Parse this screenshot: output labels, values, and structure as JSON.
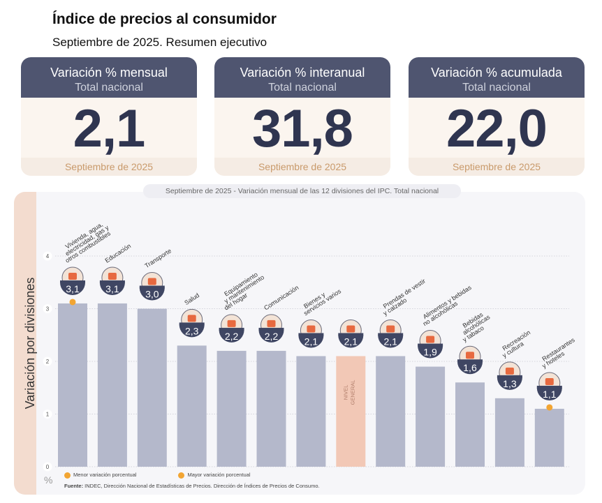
{
  "header": {
    "title": "Índice de precios al consumidor",
    "subtitle": "Septiembre de 2025. Resumen ejecutivo"
  },
  "cards": [
    {
      "title": "Variación % mensual",
      "subtitle": "Total nacional",
      "value": "2,1",
      "footer": "Septiembre de 2025"
    },
    {
      "title": "Variación % interanual",
      "subtitle": "Total nacional",
      "value": "31,8",
      "footer": "Septiembre de 2025"
    },
    {
      "title": "Variación % acumulada",
      "subtitle": "Total nacional",
      "value": "22,0",
      "footer": "Septiembre de 2025"
    }
  ],
  "panel": {
    "caption_date": "Septiembre de 2025",
    "caption_rest": " - Variación mensual de las 12 divisiones del IPC. Total nacional",
    "ylabel": "Variación por divisiones",
    "unit": "%",
    "legend_min": "Menor variación porcentual",
    "legend_max": "Mayor variación porcentual",
    "source_label": "Fuente:",
    "source_text": " INDEC, Dirección Nacional de Estadísticas de Precios. Dirección de Índices de Precios de Consumo."
  },
  "colors": {
    "bar": "#b4b8cb",
    "bar_highlight": "#f2c8b6",
    "card_header": "#4f5570",
    "badge": "#3f4663",
    "marker": "#f2a533"
  },
  "chart_data": {
    "type": "bar",
    "ylim": [
      0,
      4
    ],
    "yticks": [
      0,
      1,
      2,
      3,
      4
    ],
    "categories": [
      "Vivienda, agua, electricidad, gas y otros combustibles",
      "Educación",
      "Transporte",
      "Salud",
      "Equipamiento y mantenimiento del hogar",
      "Comunicación",
      "Bienes y servicios varios",
      "NIVEL GENERAL",
      "Prendas de vestir y calzado",
      "Alimentos y bebidas no alcohólicas",
      "Bebidas alcohólicas y tabaco",
      "Recreación y cultura",
      "Restaurantes y hoteles"
    ],
    "values": [
      3.1,
      3.1,
      3.0,
      2.3,
      2.2,
      2.2,
      2.1,
      2.1,
      2.1,
      1.9,
      1.6,
      1.3,
      1.1
    ],
    "value_labels": [
      "3,1",
      "3,1",
      "3,0",
      "2,3",
      "2,2",
      "2,2",
      "2,1",
      "2,1",
      "2,1",
      "1,9",
      "1,6",
      "1,3",
      "1,1"
    ],
    "category_lines": [
      [
        "Vivienda, agua,",
        "electricidad, gas y",
        "otros combustibles"
      ],
      [
        "Educación"
      ],
      [
        "Transporte"
      ],
      [
        "Salud"
      ],
      [
        "Equipamiento",
        "y mantenimiento",
        "del hogar"
      ],
      [
        "Comunicación"
      ],
      [
        "Bienes y",
        "servicios varios"
      ],
      [],
      [
        "Prendas de vestir",
        "y calzado"
      ],
      [
        "Alimentos y bebidas",
        "no alcohólicas"
      ],
      [
        "Bebidas",
        "alcohólicas",
        "y tabaco"
      ],
      [
        "Recreación",
        "y cultura"
      ],
      [
        "Restaurantes",
        "y hoteles"
      ]
    ],
    "highlight_label": [
      "NIVEL",
      "GENERAL"
    ],
    "highlight_index": 7,
    "max_index": 0,
    "min_index": 12
  }
}
